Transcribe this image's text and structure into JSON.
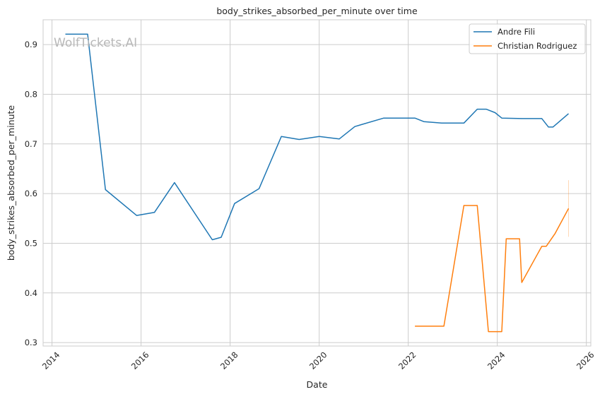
{
  "chart_data": {
    "type": "line",
    "title": "body_strikes_absorbed_per_minute over time",
    "xlabel": "Date",
    "ylabel": "body_strikes_absorbed_per_minute",
    "watermark": "WolfTickets.AI",
    "xlim": [
      2013.8,
      2026.1
    ],
    "ylim": [
      0.293,
      0.95
    ],
    "x_ticks": [
      2014,
      2016,
      2018,
      2020,
      2022,
      2024,
      2026
    ],
    "x_tick_labels": [
      "2014",
      "2016",
      "2018",
      "2020",
      "2022",
      "2024",
      "2026"
    ],
    "y_ticks": [
      0.3,
      0.4,
      0.5,
      0.6,
      0.7,
      0.8,
      0.9
    ],
    "y_tick_labels": [
      "0.3",
      "0.4",
      "0.5",
      "0.6",
      "0.7",
      "0.8",
      "0.9"
    ],
    "grid": true,
    "legend_position": "top-right",
    "series": [
      {
        "name": "Andre Fili",
        "color": "#1f77b4",
        "points": [
          [
            2014.3,
            0.921
          ],
          [
            2014.8,
            0.921
          ],
          [
            2015.2,
            0.608
          ],
          [
            2015.9,
            0.556
          ],
          [
            2016.3,
            0.562
          ],
          [
            2016.75,
            0.622
          ],
          [
            2017.6,
            0.507
          ],
          [
            2017.8,
            0.512
          ],
          [
            2018.1,
            0.58
          ],
          [
            2018.65,
            0.61
          ],
          [
            2019.15,
            0.715
          ],
          [
            2019.55,
            0.709
          ],
          [
            2020.0,
            0.715
          ],
          [
            2020.45,
            0.71
          ],
          [
            2020.8,
            0.735
          ],
          [
            2021.45,
            0.752
          ],
          [
            2022.15,
            0.752
          ],
          [
            2022.35,
            0.745
          ],
          [
            2022.75,
            0.742
          ],
          [
            2023.25,
            0.742
          ],
          [
            2023.55,
            0.77
          ],
          [
            2023.75,
            0.77
          ],
          [
            2023.95,
            0.763
          ],
          [
            2024.1,
            0.752
          ],
          [
            2024.55,
            0.751
          ],
          [
            2025.0,
            0.751
          ],
          [
            2025.15,
            0.734
          ],
          [
            2025.25,
            0.734
          ],
          [
            2025.6,
            0.761
          ]
        ]
      },
      {
        "name": "Christian Rodriguez",
        "color": "#ff7f0e",
        "points": [
          [
            2022.15,
            0.333
          ],
          [
            2022.8,
            0.333
          ],
          [
            2023.25,
            0.576
          ],
          [
            2023.55,
            0.576
          ],
          [
            2023.8,
            0.322
          ],
          [
            2024.1,
            0.322
          ],
          [
            2024.2,
            0.509
          ],
          [
            2024.5,
            0.509
          ],
          [
            2024.55,
            0.421
          ],
          [
            2025.0,
            0.494
          ],
          [
            2025.1,
            0.494
          ],
          [
            2025.3,
            0.52
          ],
          [
            2025.6,
            0.57
          ]
        ],
        "band": {
          "x": 2025.6,
          "y_low": 0.513,
          "y_high": 0.627
        }
      }
    ]
  }
}
